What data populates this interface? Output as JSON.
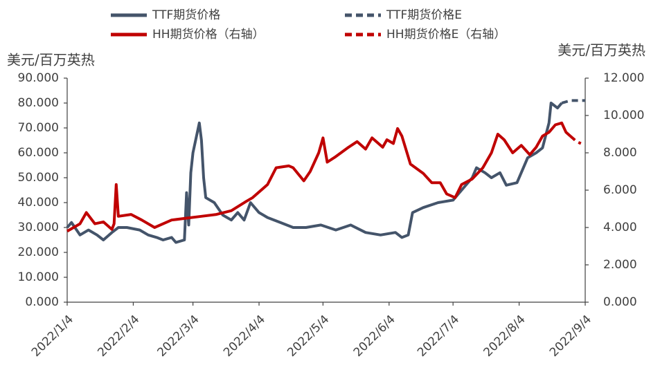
{
  "chart_data": {
    "type": "line",
    "ylabel": "美元/百万英热",
    "y2label": "美元/百万英热",
    "xlim": [
      "2022/1/4",
      "2022/9/4"
    ],
    "xticks": [
      "2022/1/4",
      "2022/2/4",
      "2022/3/4",
      "2022/4/4",
      "2022/5/4",
      "2022/6/4",
      "2022/7/4",
      "2022/8/4",
      "2022/9/4"
    ],
    "ylim": [
      0,
      90
    ],
    "yticks": [
      {
        "value": 0,
        "label": "0.000"
      },
      {
        "value": 10,
        "label": "10.000"
      },
      {
        "value": 20,
        "label": "20.000"
      },
      {
        "value": 30,
        "label": "30.000"
      },
      {
        "value": 40,
        "label": "40.000"
      },
      {
        "value": 50,
        "label": "50.000"
      },
      {
        "value": 60,
        "label": "60.000"
      },
      {
        "value": 70,
        "label": "70.000"
      },
      {
        "value": 80,
        "label": "80.000"
      },
      {
        "value": 90,
        "label": "90.000"
      }
    ],
    "y2lim": [
      0,
      12
    ],
    "y2ticks": [
      {
        "value": 0,
        "label": "0.000"
      },
      {
        "value": 2,
        "label": "2.000"
      },
      {
        "value": 4,
        "label": "4.000"
      },
      {
        "value": 6,
        "label": "6.000"
      },
      {
        "value": 8,
        "label": "8.000"
      },
      {
        "value": 10,
        "label": "10.000"
      },
      {
        "value": 12,
        "label": "12.000"
      }
    ],
    "series": [
      {
        "name": "TTF期货价格",
        "color": "#44546a",
        "dashed": false,
        "x": [
          "2022/1/4",
          "2022/1/6",
          "2022/1/10",
          "2022/1/14",
          "2022/1/18",
          "2022/1/21",
          "2022/1/25",
          "2022/1/28",
          "2022/2/1",
          "2022/2/7",
          "2022/2/11",
          "2022/2/15",
          "2022/2/18",
          "2022/2/22",
          "2022/2/24",
          "2022/2/28",
          "2022/3/1",
          "2022/3/2",
          "2022/3/3",
          "2022/3/4",
          "2022/3/7",
          "2022/3/8",
          "2022/3/9",
          "2022/3/10",
          "2022/3/14",
          "2022/3/18",
          "2022/3/22",
          "2022/3/25",
          "2022/3/28",
          "2022/3/31",
          "2022/4/4",
          "2022/4/8",
          "2022/4/14",
          "2022/4/20",
          "2022/4/26",
          "2022/5/3",
          "2022/5/10",
          "2022/5/17",
          "2022/5/24",
          "2022/5/31",
          "2022/6/7",
          "2022/6/10",
          "2022/6/13",
          "2022/6/15",
          "2022/6/20",
          "2022/6/27",
          "2022/7/4",
          "2022/7/8",
          "2022/7/13",
          "2022/7/15",
          "2022/7/19",
          "2022/7/22",
          "2022/7/26",
          "2022/7/29",
          "2022/8/3",
          "2022/8/8",
          "2022/8/12",
          "2022/8/15",
          "2022/8/18",
          "2022/8/19",
          "2022/8/22",
          "2022/8/24"
        ],
        "values": [
          30,
          32,
          27,
          29,
          27,
          25,
          28,
          30,
          30,
          29,
          27,
          26,
          25,
          26,
          24,
          25,
          44,
          31,
          52,
          60,
          72,
          65,
          50,
          42,
          40,
          35,
          33,
          36,
          33,
          40,
          36,
          34,
          32,
          30,
          30,
          31,
          29,
          31,
          28,
          27,
          28,
          26,
          27,
          36,
          38,
          40,
          41,
          45,
          50,
          54,
          52,
          50,
          52,
          47,
          48,
          58,
          60,
          62,
          72,
          80,
          78,
          80
        ]
      },
      {
        "name": "TTF期货价格E",
        "color": "#44546a",
        "dashed": true,
        "x": [
          "2022/8/24",
          "2022/8/28",
          "2022/9/1",
          "2022/9/4"
        ],
        "values": [
          80,
          81,
          81,
          81
        ]
      },
      {
        "name": "HH期货价格（右轴）",
        "color": "#c00000",
        "dashed": false,
        "axis": "y2",
        "x": [
          "2022/1/4",
          "2022/1/10",
          "2022/1/13",
          "2022/1/17",
          "2022/1/21",
          "2022/1/25",
          "2022/1/26",
          "2022/1/27",
          "2022/1/28",
          "2022/2/3",
          "2022/2/8",
          "2022/2/14",
          "2022/2/22",
          "2022/3/1",
          "2022/3/8",
          "2022/3/15",
          "2022/3/22",
          "2022/3/29",
          "2022/4/1",
          "2022/4/8",
          "2022/4/12",
          "2022/4/18",
          "2022/4/20",
          "2022/4/25",
          "2022/4/28",
          "2022/5/2",
          "2022/5/4",
          "2022/5/6",
          "2022/5/10",
          "2022/5/16",
          "2022/5/20",
          "2022/5/24",
          "2022/5/27",
          "2022/6/1",
          "2022/6/3",
          "2022/6/6",
          "2022/6/8",
          "2022/6/10",
          "2022/6/14",
          "2022/6/20",
          "2022/6/24",
          "2022/6/28",
          "2022/7/1",
          "2022/7/5",
          "2022/7/8",
          "2022/7/13",
          "2022/7/18",
          "2022/7/22",
          "2022/7/25",
          "2022/7/28",
          "2022/8/1",
          "2022/8/5",
          "2022/8/9",
          "2022/8/12",
          "2022/8/15",
          "2022/8/18",
          "2022/8/21",
          "2022/8/24",
          "2022/8/26",
          "2022/8/28"
        ],
        "values": [
          3.8,
          4.2,
          4.8,
          4.2,
          4.3,
          3.9,
          4.2,
          6.3,
          4.6,
          4.7,
          4.4,
          4.0,
          4.4,
          4.5,
          4.6,
          4.7,
          4.9,
          5.4,
          5.6,
          6.3,
          7.2,
          7.3,
          7.2,
          6.5,
          7.0,
          8.0,
          8.8,
          7.5,
          7.8,
          8.3,
          8.6,
          8.2,
          8.8,
          8.3,
          8.7,
          8.5,
          9.3,
          8.9,
          7.4,
          6.9,
          6.4,
          6.4,
          5.8,
          5.6,
          6.3,
          6.6,
          7.2,
          8.0,
          9.0,
          8.7,
          8.0,
          8.4,
          7.9,
          8.3,
          8.9,
          9.1,
          9.5,
          9.6,
          9.1,
          8.9
        ]
      },
      {
        "name": "HH期货价格E（右轴）",
        "color": "#c00000",
        "dashed": true,
        "axis": "y2",
        "x": [
          "2022/8/28",
          "2022/8/31",
          "2022/9/2"
        ],
        "values": [
          8.9,
          8.6,
          8.5
        ]
      }
    ]
  }
}
